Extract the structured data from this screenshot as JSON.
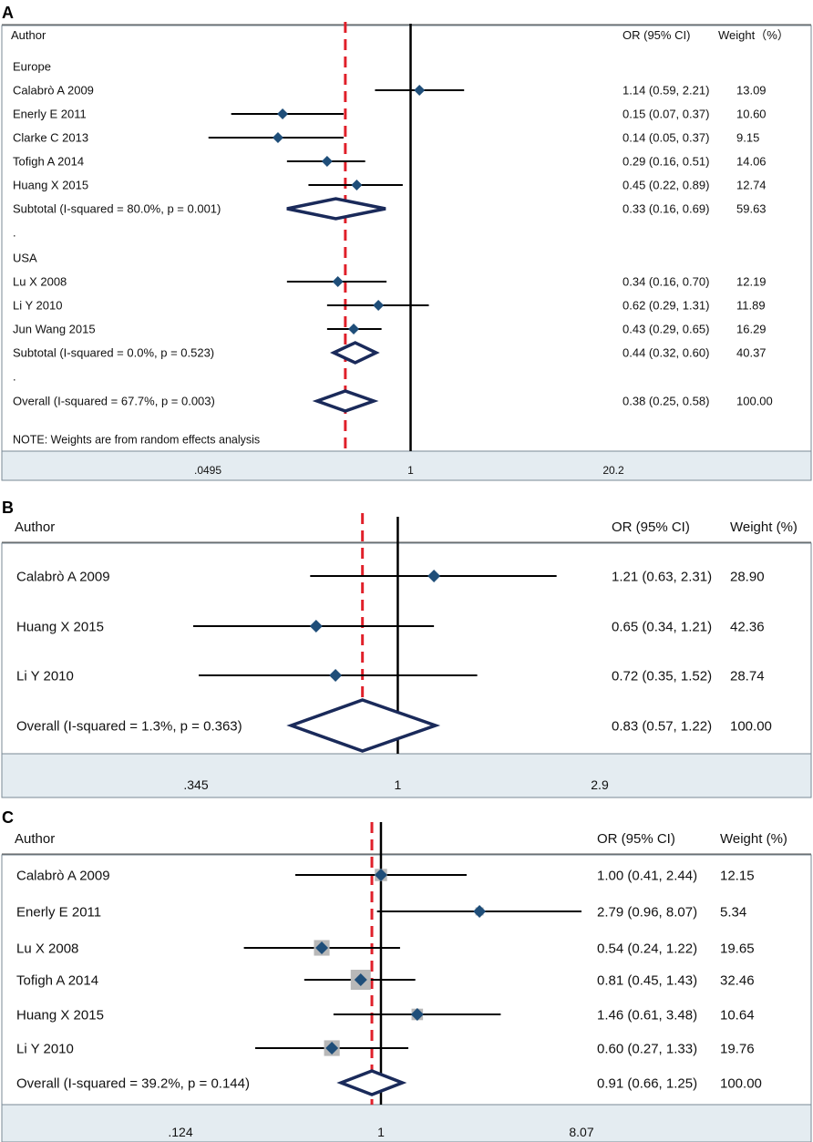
{
  "chart_data": [
    {
      "type": "forest",
      "panel_label": "A",
      "scale": "log",
      "xlim": [
        0.0495,
        20.2
      ],
      "ticks": [
        {
          "value": 0.0495,
          "label": ".0495"
        },
        {
          "value": 1,
          "label": "1"
        },
        {
          "value": 20.2,
          "label": "20.2"
        }
      ],
      "null_line": 1,
      "overall_line": 0.38,
      "headers": {
        "author": "Author",
        "or": "OR (95% CI)",
        "weight": "Weight（%）"
      },
      "rows": [
        {
          "kind": "group",
          "label": "Europe"
        },
        {
          "kind": "study",
          "label": "Calabrò A 2009",
          "or": 1.14,
          "lo": 0.59,
          "hi": 2.21,
          "or_text": "1.14 (0.59, 2.21)",
          "weight": "13.09"
        },
        {
          "kind": "study",
          "label": "Enerly E 2011",
          "or": 0.15,
          "lo": 0.07,
          "hi": 0.37,
          "or_text": "0.15 (0.07, 0.37)",
          "weight": "10.60"
        },
        {
          "kind": "study",
          "label": "Clarke C 2013",
          "or": 0.14,
          "lo": 0.05,
          "hi": 0.37,
          "or_text": "0.14 (0.05, 0.37)",
          "weight": "9.15"
        },
        {
          "kind": "study",
          "label": "Tofigh A 2014",
          "or": 0.29,
          "lo": 0.16,
          "hi": 0.51,
          "or_text": "0.29 (0.16, 0.51)",
          "weight": "14.06"
        },
        {
          "kind": "study",
          "label": "Huang X 2015",
          "or": 0.45,
          "lo": 0.22,
          "hi": 0.89,
          "or_text": "0.45 (0.22, 0.89)",
          "weight": "12.74"
        },
        {
          "kind": "subtotal",
          "label": "Subtotal  (I-squared = 80.0%, p = 0.001)",
          "or": 0.33,
          "lo": 0.16,
          "hi": 0.69,
          "or_text": "0.33 (0.16, 0.69)",
          "weight": "59.63"
        },
        {
          "kind": "text",
          "label": "."
        },
        {
          "kind": "group",
          "label": "USA"
        },
        {
          "kind": "study",
          "label": "Lu X 2008",
          "or": 0.34,
          "lo": 0.16,
          "hi": 0.7,
          "or_text": "0.34 (0.16, 0.70)",
          "weight": "12.19"
        },
        {
          "kind": "study",
          "label": "Li Y 2010",
          "or": 0.62,
          "lo": 0.29,
          "hi": 1.31,
          "or_text": "0.62 (0.29, 1.31)",
          "weight": "11.89"
        },
        {
          "kind": "study",
          "label": "Jun Wang 2015",
          "or": 0.43,
          "lo": 0.29,
          "hi": 0.65,
          "or_text": "0.43 (0.29, 0.65)",
          "weight": "16.29"
        },
        {
          "kind": "subtotal",
          "label": "Subtotal  (I-squared = 0.0%, p = 0.523)",
          "or": 0.44,
          "lo": 0.32,
          "hi": 0.6,
          "or_text": "0.44 (0.32, 0.60)",
          "weight": "40.37"
        },
        {
          "kind": "text",
          "label": "."
        },
        {
          "kind": "overall",
          "label": "Overall  (I-squared = 67.7%, p = 0.003)",
          "or": 0.38,
          "lo": 0.25,
          "hi": 0.58,
          "or_text": "0.38 (0.25, 0.58)",
          "weight": "100.00"
        },
        {
          "kind": "note",
          "label": "NOTE: Weights are from random effects analysis"
        }
      ]
    },
    {
      "type": "forest",
      "panel_label": "B",
      "scale": "log",
      "xlim": [
        0.345,
        2.9
      ],
      "ticks": [
        {
          "value": 0.345,
          "label": ".345"
        },
        {
          "value": 1,
          "label": "1"
        },
        {
          "value": 2.9,
          "label": "2.9"
        }
      ],
      "null_line": 1,
      "overall_line": 0.83,
      "headers": {
        "author": "Author",
        "or": "OR (95% CI)",
        "weight": "Weight (%)"
      },
      "rows": [
        {
          "kind": "study",
          "label": "Calabrò A 2009",
          "or": 1.21,
          "lo": 0.63,
          "hi": 2.31,
          "or_text": "1.21 (0.63, 2.31)",
          "weight": "28.90"
        },
        {
          "kind": "study",
          "label": "Huang X 2015",
          "or": 0.65,
          "lo": 0.34,
          "hi": 1.21,
          "or_text": "0.65 (0.34, 1.21)",
          "weight": "42.36"
        },
        {
          "kind": "study",
          "label": "Li Y 2010",
          "or": 0.72,
          "lo": 0.35,
          "hi": 1.52,
          "or_text": "0.72 (0.35, 1.52)",
          "weight": "28.74"
        },
        {
          "kind": "overall",
          "label": "Overall  (I-squared = 1.3%, p = 0.363)",
          "or": 0.83,
          "lo": 0.57,
          "hi": 1.22,
          "or_text": "0.83 (0.57, 1.22)",
          "weight": "100.00"
        }
      ]
    },
    {
      "type": "forest",
      "panel_label": "C",
      "scale": "log",
      "xlim": [
        0.124,
        8.07
      ],
      "ticks": [
        {
          "value": 0.124,
          "label": ".124"
        },
        {
          "value": 1,
          "label": "1"
        },
        {
          "value": 8.07,
          "label": "8.07"
        }
      ],
      "null_line": 1,
      "overall_line": 0.91,
      "headers": {
        "author": "Author",
        "or": "OR (95% CI)",
        "weight": "Weight (%)"
      },
      "rows": [
        {
          "kind": "study",
          "label": "Calabrò A 2009",
          "or": 1.0,
          "lo": 0.41,
          "hi": 2.44,
          "or_text": "1.00 (0.41, 2.44)",
          "weight": "12.15"
        },
        {
          "kind": "study",
          "label": "Enerly E 2011",
          "or": 2.79,
          "lo": 0.96,
          "hi": 8.07,
          "or_text": "2.79 (0.96, 8.07)",
          "weight": "5.34"
        },
        {
          "kind": "study",
          "label": "Lu X 2008",
          "or": 0.54,
          "lo": 0.24,
          "hi": 1.22,
          "or_text": "0.54 (0.24, 1.22)",
          "weight": "19.65"
        },
        {
          "kind": "study",
          "label": "Tofigh A 2014",
          "or": 0.81,
          "lo": 0.45,
          "hi": 1.43,
          "or_text": "0.81 (0.45, 1.43)",
          "weight": "32.46"
        },
        {
          "kind": "study",
          "label": "Huang X 2015",
          "or": 1.46,
          "lo": 0.61,
          "hi": 3.48,
          "or_text": "1.46 (0.61, 3.48)",
          "weight": "10.64"
        },
        {
          "kind": "study",
          "label": "Li Y 2010",
          "or": 0.6,
          "lo": 0.27,
          "hi": 1.33,
          "or_text": "0.60 (0.27, 1.33)",
          "weight": "19.76"
        },
        {
          "kind": "overall",
          "label": "Overall  (I-squared = 39.2%, p = 0.144)",
          "or": 0.91,
          "lo": 0.66,
          "hi": 1.25,
          "or_text": "0.91 (0.66, 1.25)",
          "weight": "100.00"
        }
      ]
    }
  ],
  "colors": {
    "marker": "#1f4e79",
    "diamond": "#1a2a5a",
    "ci_line": "#000000",
    "null_line": "#000000",
    "overall_line": "#e0202a",
    "axis_band": "#e4ecf1",
    "weight_box": "#b8b8b8"
  }
}
